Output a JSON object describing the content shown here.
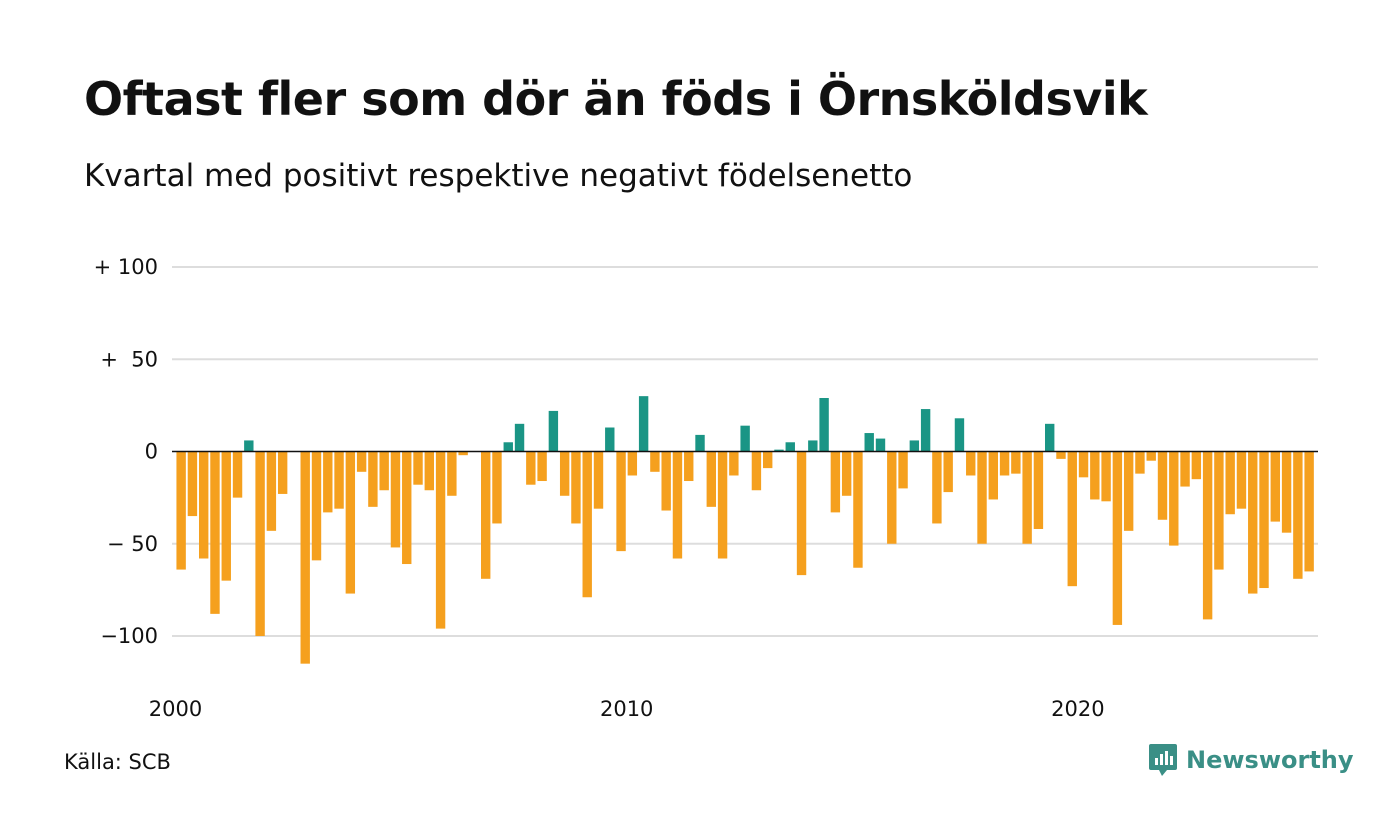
{
  "header": {
    "title": "Oftast fler som dör än föds i Örnsköldsvik",
    "subtitle": "Kvartal med positivt respektive negativt födelsenetto"
  },
  "footer": {
    "source": "Källa: SCB",
    "brand": "Newsworthy",
    "brand_icon": "newsworthy-logo-icon"
  },
  "colors": {
    "positive": "#1a9585",
    "negative": "#f5a01e",
    "grid": "#dddddd",
    "zero_line": "#111111",
    "brand": "#3a8f86"
  },
  "chart_data": {
    "type": "bar",
    "x_start_year": 2000,
    "periods_per_year": 4,
    "x_tick_labels": [
      "2000",
      "2010",
      "2020"
    ],
    "y_tick_labels": [
      "+ 100",
      "+  50",
      "0",
      "− 50",
      "−100"
    ],
    "y_tick_values": [
      100,
      50,
      0,
      -50,
      -100
    ],
    "ylim": [
      -118,
      100
    ],
    "grid": true,
    "values": [
      -64,
      -35,
      -58,
      -88,
      -70,
      -25,
      6,
      -100,
      -43,
      -23,
      0,
      -115,
      -59,
      -33,
      -31,
      -77,
      -11,
      -30,
      -21,
      -52,
      -61,
      -18,
      -21,
      -96,
      -24,
      -2,
      0,
      -69,
      -39,
      5,
      15,
      -18,
      -16,
      22,
      -24,
      -39,
      -79,
      -31,
      13,
      -54,
      -13,
      30,
      -11,
      -32,
      -58,
      -16,
      9,
      -30,
      -58,
      -13,
      14,
      -21,
      -9,
      1,
      5,
      -67,
      6,
      29,
      -33,
      -24,
      -63,
      10,
      7,
      -50,
      -20,
      6,
      23,
      -39,
      -22,
      18,
      -13,
      -50,
      -26,
      -13,
      -12,
      -50,
      -42,
      15,
      -4,
      -73,
      -14,
      -26,
      -27,
      -94,
      -43,
      -12,
      -5,
      -37,
      -51,
      -19,
      -15,
      -91,
      -64,
      -34,
      -31,
      -77,
      -74,
      -38,
      -44,
      -69,
      -65
    ]
  }
}
